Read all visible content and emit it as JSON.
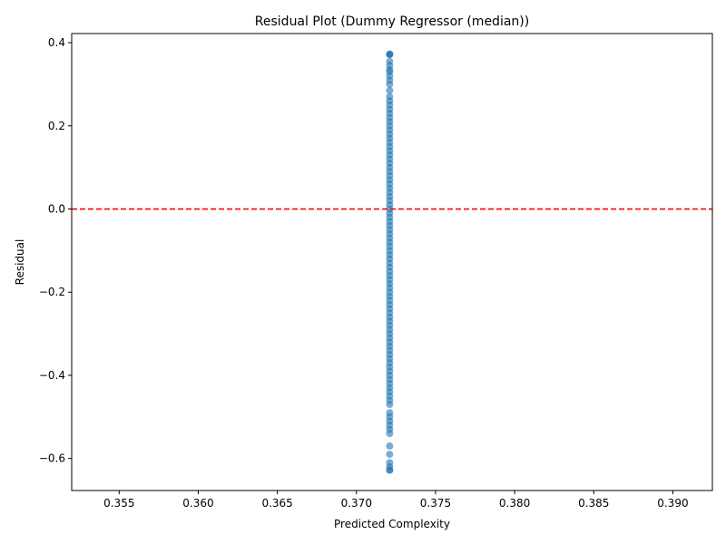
{
  "chart_data": {
    "type": "scatter",
    "title": "Residual Plot (Dummy Regressor (median))",
    "xlabel": "Predicted Complexity",
    "ylabel": "Residual",
    "xlim": [
      0.352,
      0.3925
    ],
    "ylim": [
      -0.677,
      0.422
    ],
    "xticks": [
      0.355,
      0.36,
      0.365,
      0.37,
      0.375,
      0.38,
      0.385,
      0.39
    ],
    "xtick_labels": [
      "0.355",
      "0.360",
      "0.365",
      "0.370",
      "0.375",
      "0.380",
      "0.385",
      "0.390"
    ],
    "yticks": [
      -0.6,
      -0.4,
      -0.2,
      0.0,
      0.2,
      0.4
    ],
    "ytick_labels": [
      "−0.6",
      "−0.4",
      "−0.2",
      "0.0",
      "0.2",
      "0.4"
    ],
    "grid": false,
    "reference_line": {
      "y": 0.0,
      "color": "#ff0000",
      "style": "dashed"
    },
    "point_color": "#1f77b4",
    "series": [
      {
        "x_constant": 0.3721,
        "values": [
          0.372,
          0.372,
          0.372,
          0.355,
          0.345,
          0.335,
          0.33,
          0.32,
          0.31,
          0.3,
          0.285,
          0.27,
          0.26,
          0.25,
          0.24,
          0.23,
          0.22,
          0.21,
          0.2,
          0.19,
          0.18,
          0.17,
          0.16,
          0.15,
          0.14,
          0.13,
          0.12,
          0.11,
          0.1,
          0.09,
          0.08,
          0.07,
          0.06,
          0.05,
          0.04,
          0.03,
          0.02,
          0.01,
          0.0,
          -0.01,
          -0.02,
          -0.03,
          -0.04,
          -0.05,
          -0.06,
          -0.07,
          -0.08,
          -0.09,
          -0.1,
          -0.11,
          -0.12,
          -0.13,
          -0.14,
          -0.15,
          -0.16,
          -0.17,
          -0.18,
          -0.19,
          -0.2,
          -0.21,
          -0.22,
          -0.23,
          -0.24,
          -0.25,
          -0.26,
          -0.27,
          -0.28,
          -0.29,
          -0.3,
          -0.31,
          -0.32,
          -0.33,
          -0.34,
          -0.35,
          -0.36,
          -0.37,
          -0.38,
          -0.39,
          -0.4,
          -0.41,
          -0.42,
          -0.43,
          -0.44,
          -0.45,
          -0.46,
          -0.47,
          -0.49,
          -0.5,
          -0.51,
          -0.52,
          -0.53,
          -0.54,
          -0.57,
          -0.59,
          -0.61,
          -0.62,
          -0.628,
          -0.628
        ]
      }
    ]
  }
}
